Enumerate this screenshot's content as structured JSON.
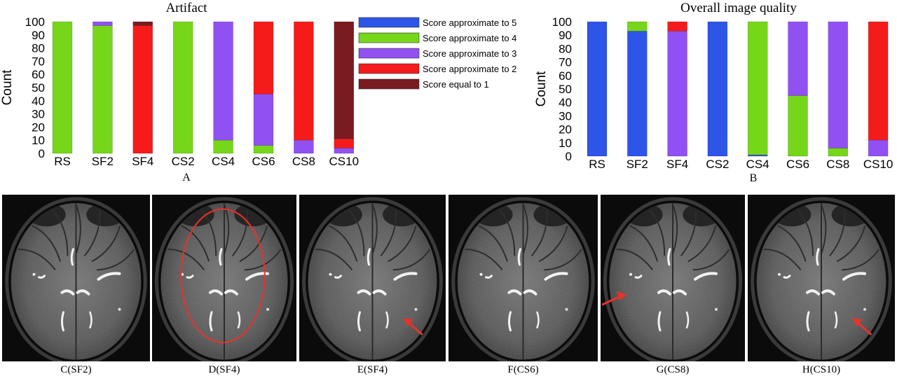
{
  "colors": {
    "score5": "#2d55e8",
    "score4": "#76d61a",
    "score3": "#9151f2",
    "score2": "#f51b1b",
    "score1": "#7a1b1f",
    "annotation": "#e8322a"
  },
  "chart_data": [
    {
      "type": "bar",
      "stacked": true,
      "title": "Artifact",
      "panel_label": "A",
      "xlabel": "",
      "ylabel": "Count",
      "ylim": [
        0,
        100
      ],
      "yticks": [
        0,
        10,
        20,
        30,
        40,
        50,
        60,
        70,
        80,
        90,
        100
      ],
      "grid": false,
      "legend_position": "right",
      "categories": [
        "RS",
        "SF2",
        "SF4",
        "CS2",
        "CS4",
        "CS6",
        "CS8",
        "CS10"
      ],
      "series": [
        {
          "name": "Score approximate to 5",
          "color_key": "score5",
          "values": [
            0,
            0,
            0,
            0,
            0,
            0,
            0,
            0
          ]
        },
        {
          "name": "Score approximate to 4",
          "color_key": "score4",
          "values": [
            100,
            97,
            0,
            100,
            10,
            6,
            0,
            0
          ]
        },
        {
          "name": "Score approximate to 3",
          "color_key": "score3",
          "values": [
            0,
            3,
            0,
            0,
            90,
            39,
            10,
            4
          ]
        },
        {
          "name": "Score approximate to 2",
          "color_key": "score2",
          "values": [
            0,
            0,
            97,
            0,
            0,
            55,
            90,
            7
          ]
        },
        {
          "name": "Score equal to 1",
          "color_key": "score1",
          "values": [
            0,
            0,
            3,
            0,
            0,
            0,
            0,
            89
          ]
        }
      ]
    },
    {
      "type": "bar",
      "stacked": true,
      "title": "Overall image quality",
      "panel_label": "B",
      "xlabel": "",
      "ylabel": "Count",
      "ylim": [
        0,
        100
      ],
      "yticks": [
        0,
        10,
        20,
        30,
        40,
        50,
        60,
        70,
        80,
        90,
        100
      ],
      "grid": false,
      "categories": [
        "RS",
        "SF2",
        "SF4",
        "CS2",
        "CS4",
        "CS6",
        "CS8",
        "CS10"
      ],
      "series": [
        {
          "color_key": "score5",
          "values": [
            100,
            93,
            0,
            100,
            1,
            0,
            0,
            0
          ]
        },
        {
          "color_key": "score4",
          "values": [
            0,
            7,
            0,
            0,
            99,
            45,
            6,
            0
          ]
        },
        {
          "color_key": "score3",
          "values": [
            0,
            0,
            93,
            0,
            0,
            55,
            94,
            12
          ]
        },
        {
          "color_key": "score2",
          "values": [
            0,
            0,
            7,
            0,
            0,
            0,
            0,
            88
          ]
        },
        {
          "color_key": "score1",
          "values": [
            0,
            0,
            0,
            0,
            0,
            0,
            0,
            0
          ]
        }
      ]
    }
  ],
  "images": [
    {
      "caption": "C(SF2)",
      "annotation": "none"
    },
    {
      "caption": "D(SF4)",
      "annotation": "ellipse"
    },
    {
      "caption": "E(SF4)",
      "annotation": "arrow-lower-right"
    },
    {
      "caption": "F(CS6)",
      "annotation": "none"
    },
    {
      "caption": "G(CS8)",
      "annotation": "arrow-left"
    },
    {
      "caption": "H(CS10)",
      "annotation": "arrow-lower-right"
    }
  ]
}
